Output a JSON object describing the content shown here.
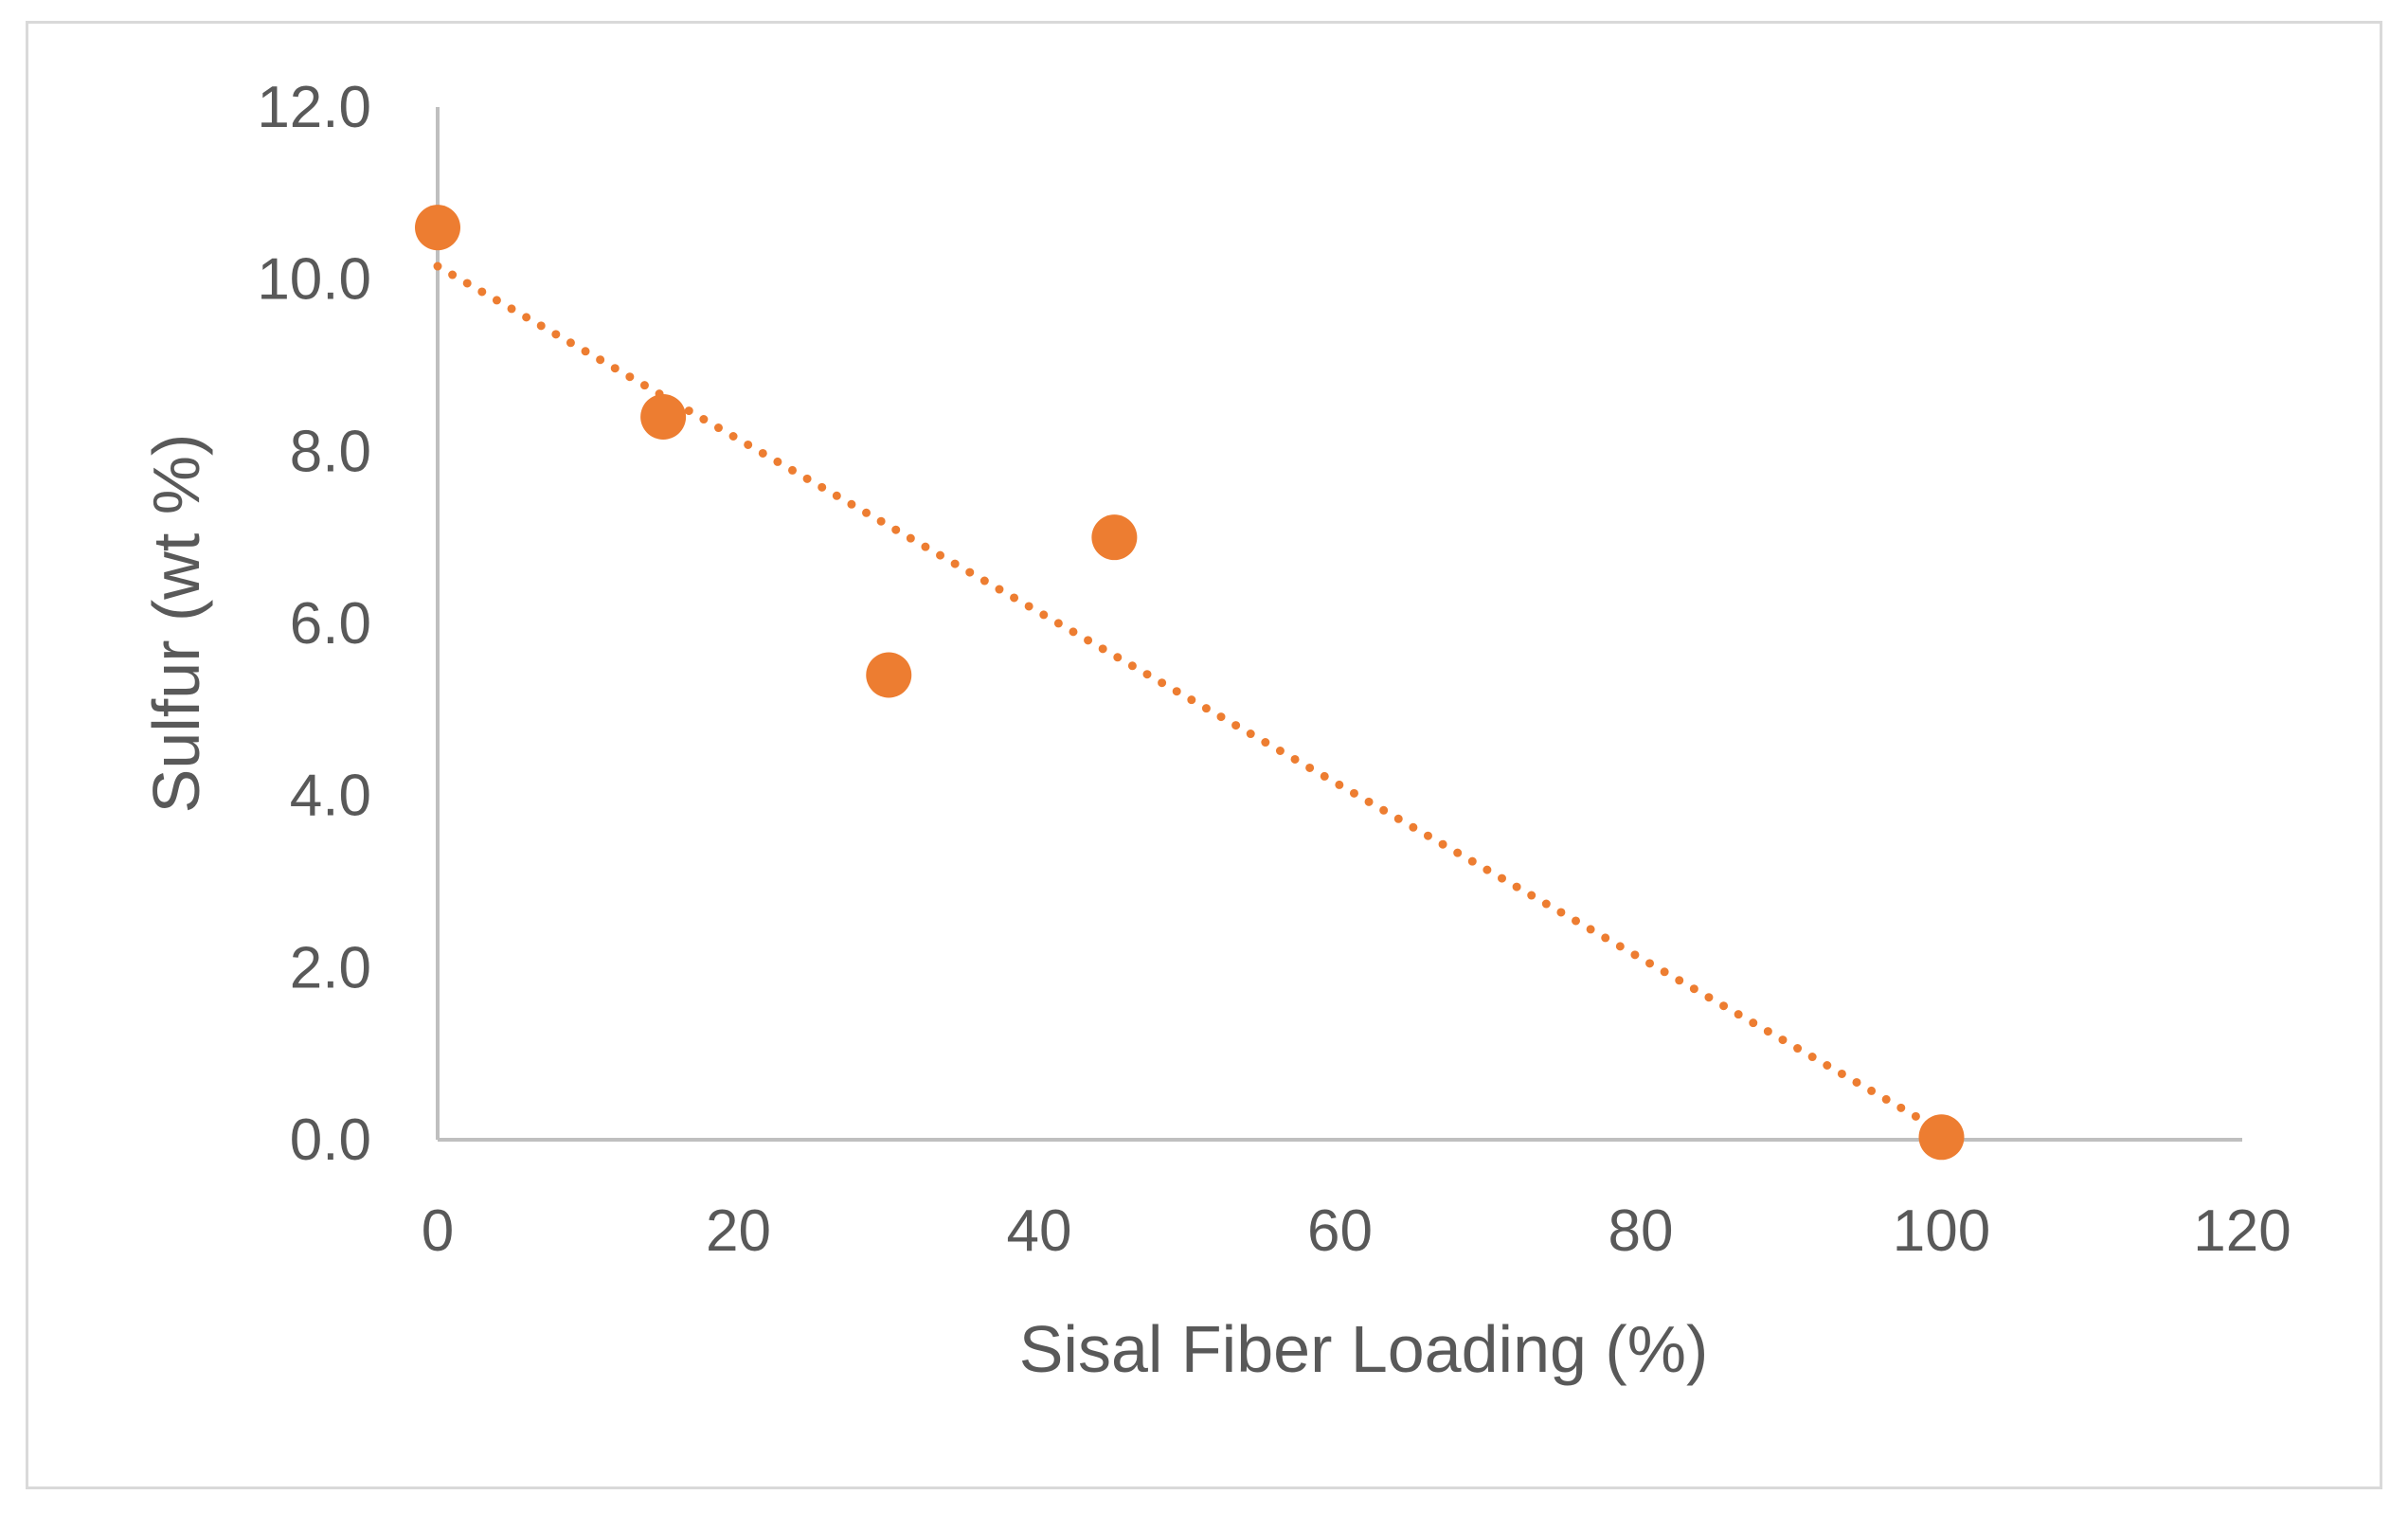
{
  "chart_data": {
    "type": "scatter",
    "title": "",
    "xlabel": "Sisal Fiber Loading (%)",
    "ylabel": "Sulfur (wt %)",
    "xlim": [
      0,
      120
    ],
    "ylim": [
      0,
      12
    ],
    "x_ticks": [
      0,
      20,
      40,
      60,
      80,
      100,
      120
    ],
    "y_ticks": [
      0,
      2,
      4,
      6,
      8,
      10,
      12
    ],
    "x_tick_labels": [
      "0",
      "20",
      "40",
      "60",
      "80",
      "100",
      "120"
    ],
    "y_tick_labels": [
      "0.0",
      "2.0",
      "4.0",
      "6.0",
      "8.0",
      "10.0",
      "12.0"
    ],
    "grid": false,
    "legend": "none",
    "series": [
      {
        "name": "Sulfur",
        "color": "#ED7D31",
        "x": [
          0,
          15,
          30,
          45,
          100
        ],
        "y": [
          10.6,
          8.4,
          5.4,
          7.0,
          0.03
        ]
      }
    ],
    "trendline": {
      "type": "linear",
      "style": "dotted",
      "color": "#ED7D31",
      "x": [
        0,
        100
      ],
      "y": [
        10.15,
        0.1
      ]
    }
  }
}
